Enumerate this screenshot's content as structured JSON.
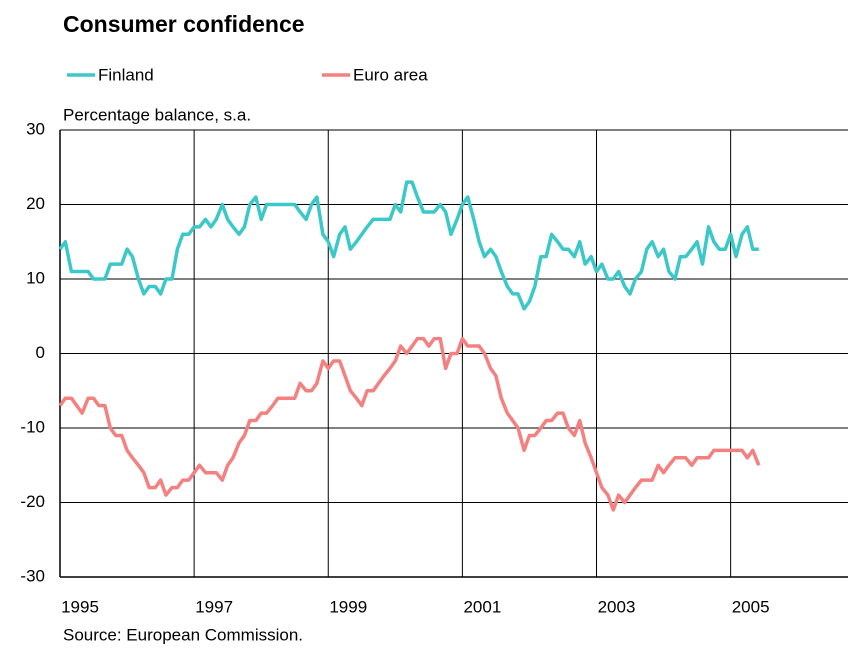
{
  "chart_data": {
    "type": "line",
    "title": "Consumer confidence",
    "subtitle": "Percentage balance, s.a.",
    "source": "Source: European Commission.",
    "x": [
      1995,
      1995.08,
      1995.17,
      1995.25,
      1995.33,
      1995.42,
      1995.5,
      1995.58,
      1995.67,
      1995.75,
      1995.83,
      1995.92,
      1996,
      1996.08,
      1996.17,
      1996.25,
      1996.33,
      1996.42,
      1996.5,
      1996.58,
      1996.67,
      1996.75,
      1996.83,
      1996.92,
      1997,
      1997.08,
      1997.17,
      1997.25,
      1997.33,
      1997.42,
      1997.5,
      1997.58,
      1997.67,
      1997.75,
      1997.83,
      1997.92,
      1998,
      1998.08,
      1998.17,
      1998.25,
      1998.33,
      1998.42,
      1998.5,
      1998.58,
      1998.67,
      1998.75,
      1998.83,
      1998.92,
      1999,
      1999.08,
      1999.17,
      1999.25,
      1999.33,
      1999.42,
      1999.5,
      1999.58,
      1999.67,
      1999.75,
      1999.83,
      1999.92,
      2000,
      2000.08,
      2000.17,
      2000.25,
      2000.33,
      2000.42,
      2000.5,
      2000.58,
      2000.67,
      2000.75,
      2000.83,
      2000.92,
      2001,
      2001.08,
      2001.17,
      2001.25,
      2001.33,
      2001.42,
      2001.5,
      2001.58,
      2001.67,
      2001.75,
      2001.83,
      2001.92,
      2002,
      2002.08,
      2002.17,
      2002.25,
      2002.33,
      2002.42,
      2002.5,
      2002.58,
      2002.67,
      2002.75,
      2002.83,
      2002.92,
      2003,
      2003.08,
      2003.17,
      2003.25,
      2003.33,
      2003.42,
      2003.5,
      2003.58,
      2003.67,
      2003.75,
      2003.83,
      2003.92,
      2004,
      2004.08,
      2004.17,
      2004.25,
      2004.33,
      2004.42,
      2004.5,
      2004.58,
      2004.67,
      2004.75,
      2004.83,
      2004.92,
      2005,
      2005.08,
      2005.17,
      2005.25,
      2005.33,
      2005.42
    ],
    "series": [
      {
        "name": "Finland",
        "color": "#3cc8c8",
        "values": [
          14,
          15,
          11,
          11,
          11,
          11,
          10,
          10,
          10,
          12,
          12,
          12,
          14,
          13,
          10,
          8,
          9,
          9,
          8,
          10,
          10,
          14,
          16,
          16,
          17,
          17,
          18,
          17,
          18,
          20,
          18,
          17,
          16,
          17,
          20,
          21,
          18,
          20,
          20,
          20,
          20,
          20,
          20,
          19,
          18,
          20,
          21,
          16,
          15,
          13,
          16,
          17,
          14,
          15,
          16,
          17,
          18,
          18,
          18,
          18,
          20,
          19,
          23,
          23,
          21,
          19,
          19,
          19,
          20,
          19,
          16,
          18,
          20,
          21,
          18,
          15,
          13,
          14,
          13,
          11,
          9,
          8,
          8,
          6,
          7,
          9,
          13,
          13,
          16,
          15,
          14,
          14,
          13,
          15,
          12,
          13,
          11,
          12,
          10,
          10,
          11,
          9,
          8,
          10,
          11,
          14,
          15,
          13,
          14,
          11,
          10,
          13,
          13,
          14,
          15,
          12,
          17,
          15,
          14,
          14,
          16,
          13,
          16,
          17,
          14,
          14
        ]
      },
      {
        "name": "Euro area",
        "color": "#f48080",
        "values": [
          -7,
          -6,
          -6,
          -7,
          -8,
          -6,
          -6,
          -7,
          -7,
          -10,
          -11,
          -11,
          -13,
          -14,
          -15,
          -16,
          -18,
          -18,
          -17,
          -19,
          -18,
          -18,
          -17,
          -17,
          -16,
          -15,
          -16,
          -16,
          -16,
          -17,
          -15,
          -14,
          -12,
          -11,
          -9,
          -9,
          -8,
          -8,
          -7,
          -6,
          -6,
          -6,
          -6,
          -4,
          -5,
          -5,
          -4,
          -1,
          -2,
          -1,
          -1,
          -3,
          -5,
          -6,
          -7,
          -5,
          -5,
          -4,
          -3,
          -2,
          -1,
          1,
          0,
          1,
          2,
          2,
          1,
          2,
          2,
          -2,
          0,
          0,
          2,
          1,
          1,
          1,
          0,
          -2,
          -3,
          -6,
          -8,
          -9,
          -10,
          -13,
          -11,
          -11,
          -10,
          -9,
          -9,
          -8,
          -8,
          -10,
          -11,
          -9,
          -12,
          -14,
          -16,
          -18,
          -19,
          -21,
          -19,
          -20,
          -19,
          -18,
          -17,
          -17,
          -17,
          -15,
          -16,
          -15,
          -14,
          -14,
          -14,
          -15,
          -14,
          -14,
          -14,
          -13,
          -13,
          -13,
          -13,
          -13,
          -13,
          -14,
          -13,
          -15
        ]
      }
    ],
    "xlim": [
      1995,
      2006.75
    ],
    "xticks": [
      1995,
      1997,
      1999,
      2001,
      2003,
      2005
    ],
    "ylim": [
      -30,
      30
    ],
    "yticks": [
      -30,
      -20,
      -10,
      0,
      10,
      20,
      30
    ],
    "grid": true
  }
}
